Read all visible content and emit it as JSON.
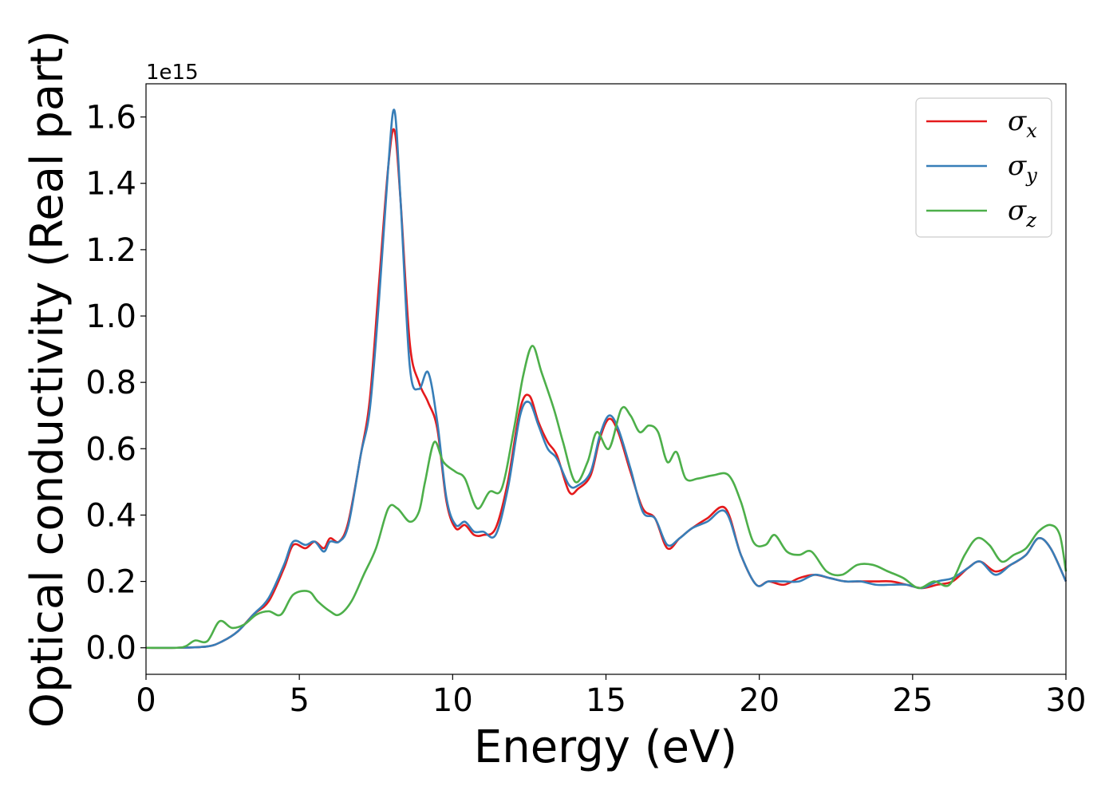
{
  "chart_data": {
    "type": "line",
    "xlabel": "Energy (eV)",
    "ylabel": "Optical conductivity (Real part)",
    "y_offset_label": "1e15",
    "xlim": [
      0,
      30
    ],
    "ylim": [
      -0.08,
      1.7
    ],
    "x_ticks": [
      0,
      5,
      10,
      15,
      20,
      25,
      30
    ],
    "x_tick_labels": [
      "0",
      "5",
      "10",
      "15",
      "20",
      "25",
      "30"
    ],
    "y_ticks": [
      0.0,
      0.2,
      0.4,
      0.6,
      0.8,
      1.0,
      1.2,
      1.4,
      1.6
    ],
    "y_tick_labels": [
      "0.0",
      "0.2",
      "0.4",
      "0.6",
      "0.8",
      "1.0",
      "1.2",
      "1.4",
      "1.6"
    ],
    "grid": false,
    "legend_position": "top-right",
    "series": [
      {
        "name": "σx",
        "legend_main": "σ",
        "legend_sub": "x",
        "color": "#e41a1c",
        "x": [
          0,
          1,
          2,
          2.5,
          3,
          3.5,
          4,
          4.5,
          4.8,
          5.2,
          5.5,
          5.8,
          6,
          6.3,
          6.6,
          7,
          7.3,
          7.6,
          7.9,
          8.1,
          8.3,
          8.6,
          8.9,
          9.2,
          9.5,
          9.8,
          10.1,
          10.4,
          10.7,
          11,
          11.4,
          11.8,
          12.2,
          12.5,
          12.8,
          13.1,
          13.4,
          13.8,
          14.1,
          14.5,
          14.8,
          15.1,
          15.4,
          15.8,
          16.2,
          16.6,
          17,
          17.4,
          17.8,
          18.3,
          18.9,
          19.4,
          19.9,
          20.3,
          20.8,
          21.3,
          21.8,
          22.3,
          22.8,
          23.3,
          23.8,
          24.3,
          24.8,
          25.3,
          25.8,
          26.3,
          26.8,
          27.2,
          27.7,
          28.2,
          28.7,
          29.1,
          29.5,
          30
        ],
        "y": [
          0,
          0,
          0.004,
          0.02,
          0.05,
          0.1,
          0.14,
          0.24,
          0.31,
          0.3,
          0.32,
          0.3,
          0.33,
          0.32,
          0.38,
          0.58,
          0.75,
          1.1,
          1.45,
          1.56,
          1.35,
          0.92,
          0.8,
          0.74,
          0.66,
          0.44,
          0.36,
          0.37,
          0.34,
          0.34,
          0.36,
          0.5,
          0.72,
          0.76,
          0.68,
          0.62,
          0.58,
          0.47,
          0.48,
          0.52,
          0.63,
          0.69,
          0.65,
          0.53,
          0.42,
          0.39,
          0.3,
          0.33,
          0.36,
          0.39,
          0.42,
          0.28,
          0.19,
          0.2,
          0.19,
          0.21,
          0.22,
          0.21,
          0.2,
          0.2,
          0.2,
          0.2,
          0.19,
          0.18,
          0.19,
          0.2,
          0.24,
          0.26,
          0.23,
          0.25,
          0.28,
          0.33,
          0.3,
          0.2
        ]
      },
      {
        "name": "σy",
        "legend_main": "σ",
        "legend_sub": "y",
        "color": "#377eb8",
        "x": [
          0,
          1,
          2,
          2.5,
          3,
          3.5,
          4,
          4.5,
          4.8,
          5.2,
          5.5,
          5.8,
          6,
          6.3,
          6.6,
          7,
          7.3,
          7.6,
          7.9,
          8.1,
          8.3,
          8.6,
          8.9,
          9.2,
          9.5,
          9.8,
          10.1,
          10.4,
          10.7,
          11,
          11.4,
          11.8,
          12.2,
          12.5,
          12.8,
          13.1,
          13.4,
          13.8,
          14.1,
          14.5,
          14.8,
          15.1,
          15.4,
          15.8,
          16.2,
          16.6,
          17,
          17.4,
          17.8,
          18.3,
          18.9,
          19.4,
          19.9,
          20.3,
          20.8,
          21.3,
          21.8,
          22.3,
          22.8,
          23.3,
          23.8,
          24.3,
          24.8,
          25.3,
          25.8,
          26.3,
          26.8,
          27.2,
          27.7,
          28.2,
          28.7,
          29.1,
          29.5,
          30
        ],
        "y": [
          0,
          0,
          0.004,
          0.02,
          0.05,
          0.1,
          0.15,
          0.25,
          0.32,
          0.31,
          0.32,
          0.29,
          0.32,
          0.32,
          0.37,
          0.58,
          0.72,
          1.05,
          1.45,
          1.62,
          1.35,
          0.85,
          0.78,
          0.83,
          0.68,
          0.45,
          0.37,
          0.38,
          0.35,
          0.35,
          0.34,
          0.48,
          0.7,
          0.74,
          0.67,
          0.6,
          0.57,
          0.49,
          0.49,
          0.53,
          0.64,
          0.7,
          0.66,
          0.54,
          0.41,
          0.39,
          0.31,
          0.33,
          0.36,
          0.38,
          0.41,
          0.28,
          0.19,
          0.2,
          0.2,
          0.2,
          0.22,
          0.21,
          0.2,
          0.2,
          0.19,
          0.19,
          0.19,
          0.18,
          0.2,
          0.21,
          0.24,
          0.26,
          0.22,
          0.25,
          0.28,
          0.33,
          0.3,
          0.2
        ]
      },
      {
        "name": "σz",
        "legend_main": "σ",
        "legend_sub": "z",
        "color": "#4daf4a",
        "x": [
          0,
          1,
          1.3,
          1.6,
          2,
          2.4,
          2.8,
          3.2,
          3.6,
          4,
          4.4,
          4.8,
          5.3,
          5.6,
          6,
          6.3,
          6.7,
          7.1,
          7.5,
          7.9,
          8.2,
          8.6,
          8.9,
          9.1,
          9.4,
          9.7,
          10.1,
          10.4,
          10.8,
          11.2,
          11.6,
          12,
          12.3,
          12.6,
          12.9,
          13.3,
          13.6,
          14,
          14.4,
          14.7,
          15.1,
          15.5,
          15.8,
          16.1,
          16.4,
          16.7,
          17,
          17.3,
          17.6,
          18,
          18.5,
          19,
          19.4,
          19.8,
          20.2,
          20.5,
          20.9,
          21.3,
          21.7,
          22.2,
          22.7,
          23.2,
          23.7,
          24.2,
          24.7,
          25.2,
          25.7,
          26.2,
          26.7,
          27.1,
          27.5,
          27.9,
          28.3,
          28.7,
          29.1,
          29.5,
          29.8,
          30
        ],
        "y": [
          0,
          0,
          0.005,
          0.022,
          0.02,
          0.08,
          0.06,
          0.07,
          0.1,
          0.11,
          0.1,
          0.16,
          0.17,
          0.14,
          0.11,
          0.1,
          0.14,
          0.22,
          0.3,
          0.42,
          0.42,
          0.38,
          0.41,
          0.5,
          0.62,
          0.56,
          0.53,
          0.51,
          0.42,
          0.47,
          0.48,
          0.66,
          0.82,
          0.91,
          0.83,
          0.72,
          0.62,
          0.5,
          0.56,
          0.65,
          0.6,
          0.72,
          0.7,
          0.65,
          0.67,
          0.65,
          0.56,
          0.59,
          0.51,
          0.51,
          0.52,
          0.52,
          0.44,
          0.32,
          0.31,
          0.34,
          0.29,
          0.28,
          0.29,
          0.23,
          0.22,
          0.25,
          0.25,
          0.23,
          0.21,
          0.18,
          0.2,
          0.19,
          0.28,
          0.33,
          0.31,
          0.26,
          0.28,
          0.3,
          0.35,
          0.37,
          0.34,
          0.23
        ]
      }
    ]
  }
}
